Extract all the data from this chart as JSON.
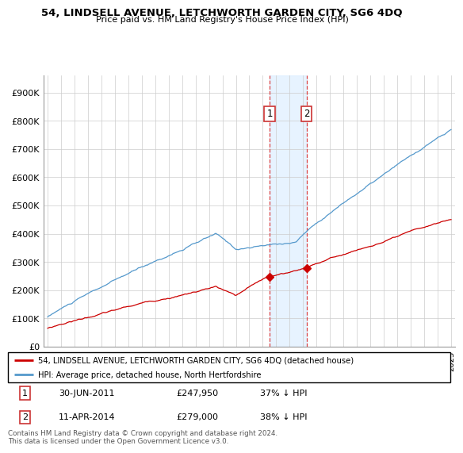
{
  "title": "54, LINDSELL AVENUE, LETCHWORTH GARDEN CITY, SG6 4DQ",
  "subtitle": "Price paid vs. HM Land Registry's House Price Index (HPI)",
  "yticks": [
    0,
    100000,
    200000,
    300000,
    400000,
    500000,
    600000,
    700000,
    800000,
    900000
  ],
  "ytick_labels": [
    "£0",
    "£100K",
    "£200K",
    "£300K",
    "£400K",
    "£500K",
    "£600K",
    "£700K",
    "£800K",
    "£900K"
  ],
  "ylim": [
    0,
    960000
  ],
  "xlim_start": 1994.7,
  "xlim_end": 2025.3,
  "sale1_x": 2011.5,
  "sale1_y": 247950,
  "sale1_label": "1",
  "sale1_date": "30-JUN-2011",
  "sale1_price": "£247,950",
  "sale1_hpi": "37% ↓ HPI",
  "sale2_x": 2014.25,
  "sale2_y": 279000,
  "sale2_label": "2",
  "sale2_date": "11-APR-2014",
  "sale2_price": "£279,000",
  "sale2_hpi": "38% ↓ HPI",
  "red_color": "#cc0000",
  "blue_color": "#5599cc",
  "shade_color": "#ddeeff",
  "grid_color": "#cccccc",
  "legend_label_red": "54, LINDSELL AVENUE, LETCHWORTH GARDEN CITY, SG6 4DQ (detached house)",
  "legend_label_blue": "HPI: Average price, detached house, North Hertfordshire",
  "footer": "Contains HM Land Registry data © Crown copyright and database right 2024.\nThis data is licensed under the Open Government Licence v3.0."
}
